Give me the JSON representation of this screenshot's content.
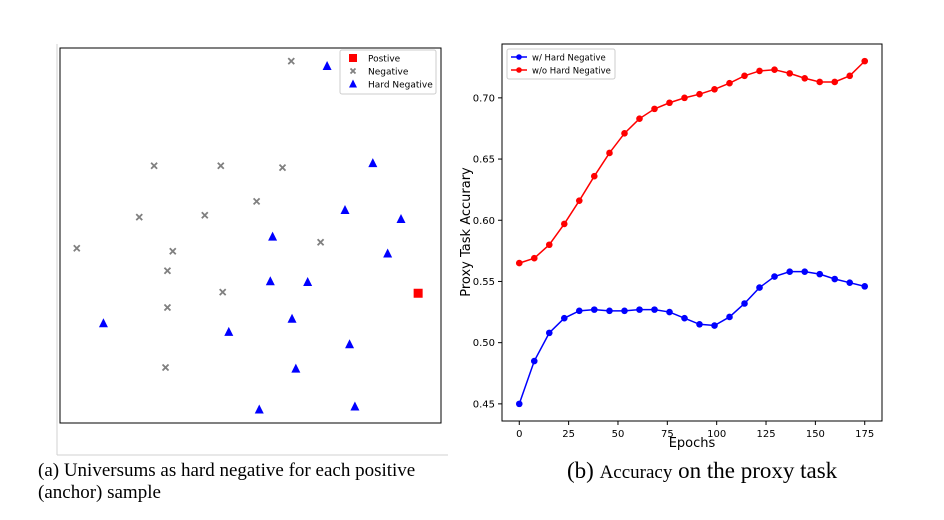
{
  "chart_data": [
    {
      "type": "scatter",
      "title": "",
      "xlabel": "",
      "ylabel": "",
      "grid": false,
      "legend": "top-right",
      "xlim": [
        0,
        100
      ],
      "ylim": [
        0,
        100
      ],
      "series": [
        {
          "name": "Postive",
          "marker": "square",
          "color": "#ff0000",
          "points": [
            [
              94.0,
              34.6
            ]
          ]
        },
        {
          "name": "Negative",
          "marker": "x",
          "color": "#808080",
          "points": [
            [
              60.7,
              96.5
            ],
            [
              24.7,
              68.6
            ],
            [
              42.2,
              68.6
            ],
            [
              58.4,
              68.1
            ],
            [
              20.8,
              54.9
            ],
            [
              38.0,
              55.4
            ],
            [
              51.6,
              59.1
            ],
            [
              4.4,
              46.6
            ],
            [
              29.6,
              45.8
            ],
            [
              68.4,
              48.2
            ],
            [
              28.2,
              40.6
            ],
            [
              42.7,
              34.9
            ],
            [
              28.2,
              30.8
            ],
            [
              27.7,
              14.8
            ]
          ]
        },
        {
          "name": "Hard Negative",
          "marker": "triangle",
          "color": "#0000ff",
          "points": [
            [
              70.1,
              95.2
            ],
            [
              82.1,
              69.3
            ],
            [
              74.8,
              56.8
            ],
            [
              89.5,
              54.4
            ],
            [
              55.8,
              49.7
            ],
            [
              86.0,
              45.2
            ],
            [
              55.2,
              37.8
            ],
            [
              65.0,
              37.6
            ],
            [
              11.4,
              26.6
            ],
            [
              44.3,
              24.3
            ],
            [
              60.9,
              27.8
            ],
            [
              76.0,
              21.0
            ],
            [
              61.9,
              14.5
            ],
            [
              52.3,
              3.6
            ],
            [
              77.4,
              4.4
            ]
          ]
        }
      ]
    },
    {
      "type": "line",
      "title": "",
      "xlabel": "Epochs",
      "ylabel": "Proxy Task Accurary",
      "grid": false,
      "legend": "top-left",
      "xlim": [
        -8.75,
        183.75
      ],
      "ylim": [
        0.436,
        0.744
      ],
      "xticks": [
        0,
        25,
        50,
        75,
        100,
        125,
        150,
        175
      ],
      "yticks": [
        0.45,
        0.5,
        0.55,
        0.6,
        0.65,
        0.7
      ],
      "ytick_labels": [
        "0.45",
        "0.50",
        "0.55",
        "0.60",
        "0.65",
        "0.70"
      ],
      "x": [
        0,
        7.6,
        15.2,
        22.8,
        30.4,
        38,
        45.7,
        53.3,
        60.9,
        68.5,
        76.1,
        83.7,
        91.3,
        98.9,
        106.5,
        114.1,
        121.7,
        129.3,
        137,
        144.6,
        152.2,
        159.8,
        167.4,
        175
      ],
      "series": [
        {
          "name": "w/ Hard Negative",
          "color": "#0000ff",
          "values": [
            0.45,
            0.485,
            0.508,
            0.52,
            0.526,
            0.527,
            0.526,
            0.526,
            0.527,
            0.527,
            0.525,
            0.52,
            0.515,
            0.514,
            0.521,
            0.532,
            0.545,
            0.554,
            0.558,
            0.558,
            0.556,
            0.552,
            0.549,
            0.546
          ]
        },
        {
          "name": "w/o Hard Negative",
          "color": "#ff0000",
          "values": [
            0.565,
            0.569,
            0.58,
            0.597,
            0.616,
            0.636,
            0.655,
            0.671,
            0.683,
            0.691,
            0.696,
            0.7,
            0.703,
            0.707,
            0.712,
            0.718,
            0.722,
            0.723,
            0.72,
            0.716,
            0.713,
            0.713,
            0.718,
            0.73
          ]
        }
      ]
    }
  ],
  "captions": {
    "left": "(a) Universums as hard negative for each positive (anchor) sample",
    "right_prefix": "(b) ",
    "right_small": "Accuracy",
    "right_suffix": " on the proxy task"
  }
}
